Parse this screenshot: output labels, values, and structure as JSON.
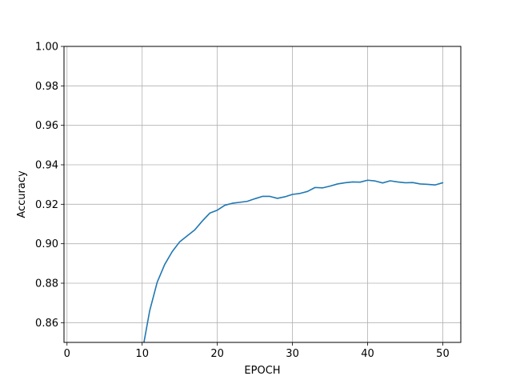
{
  "chart_data": {
    "type": "line",
    "title": "",
    "xlabel": "EPOCH",
    "ylabel": "Accuracy",
    "xlim": [
      -0.4,
      52.4
    ],
    "ylim": [
      0.85,
      1.0
    ],
    "xticks": [
      0,
      10,
      20,
      30,
      40,
      50
    ],
    "yticks": [
      0.86,
      0.88,
      0.9,
      0.92,
      0.94,
      0.96,
      0.98,
      1.0
    ],
    "xtick_labels": [
      "0",
      "10",
      "20",
      "30",
      "40",
      "50"
    ],
    "ytick_labels": [
      "0.86",
      "0.88",
      "0.90",
      "0.92",
      "0.94",
      "0.96",
      "0.98",
      "1.00"
    ],
    "grid": true,
    "legend": "none",
    "colors": {
      "series": "#1f77b4",
      "grid": "#b0b0b0",
      "axes": "#000000"
    },
    "series": [
      {
        "x": [
          10,
          11,
          12,
          13,
          14,
          15,
          16,
          17,
          18,
          19,
          20,
          21,
          22,
          23,
          24,
          25,
          26,
          27,
          28,
          29,
          30,
          31,
          32,
          33,
          34,
          35,
          36,
          37,
          38,
          39,
          40,
          41,
          42,
          43,
          44,
          45,
          46,
          47,
          48,
          49,
          50
        ],
        "values": [
          0.845,
          0.866,
          0.8805,
          0.8895,
          0.896,
          0.901,
          0.904,
          0.907,
          0.9115,
          0.9155,
          0.917,
          0.9195,
          0.9205,
          0.921,
          0.9215,
          0.9228,
          0.924,
          0.924,
          0.923,
          0.9238,
          0.925,
          0.9255,
          0.9265,
          0.9285,
          0.9283,
          0.9292,
          0.9303,
          0.9309,
          0.9313,
          0.9312,
          0.9322,
          0.9318,
          0.9308,
          0.9319,
          0.9313,
          0.9309,
          0.931,
          0.9303,
          0.9301,
          0.9298,
          0.9309
        ]
      }
    ]
  }
}
